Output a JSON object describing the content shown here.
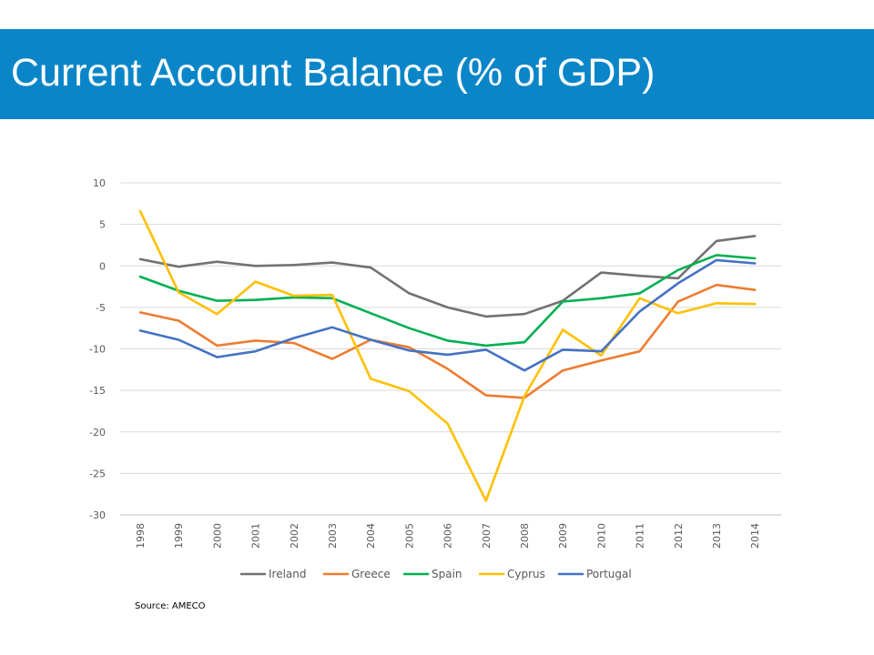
{
  "slide": {
    "title": "Current Account Balance (% of GDP)",
    "source": "Source: AMECO"
  },
  "colors": {
    "banner": "#0a86c8",
    "gridline": "#d9d9d9",
    "axis": "#bfbfbf"
  },
  "chart_data": {
    "type": "line",
    "title": "",
    "xlabel": "",
    "ylabel": "",
    "ylim": [
      -30,
      10
    ],
    "yticks": [
      10,
      5,
      0,
      -5,
      -10,
      -15,
      -20,
      -25,
      -30
    ],
    "grid": true,
    "legend_position": "bottom",
    "x": [
      "1998",
      "1999",
      "2000",
      "2001",
      "2002",
      "2003",
      "2004",
      "2005",
      "2006",
      "2007",
      "2008",
      "2009",
      "2010",
      "2011",
      "2012",
      "2013",
      "2014"
    ],
    "series": [
      {
        "name": "Ireland",
        "color": "#767171",
        "values": [
          0.8,
          -0.1,
          0.5,
          0.0,
          0.1,
          0.4,
          -0.2,
          -3.3,
          -5.0,
          -6.1,
          -5.8,
          -4.2,
          -0.8,
          -1.2,
          -1.5,
          3.0,
          3.6
        ]
      },
      {
        "name": "Greece",
        "color": "#ed7d31",
        "values": [
          -5.6,
          -6.6,
          -9.6,
          -9.0,
          -9.3,
          -11.2,
          -8.9,
          -9.8,
          -12.4,
          -15.6,
          -15.9,
          -12.6,
          -11.4,
          -10.3,
          -4.3,
          -2.3,
          -2.9
        ]
      },
      {
        "name": "Spain",
        "color": "#00b050",
        "values": [
          -1.3,
          -3.0,
          -4.2,
          -4.1,
          -3.8,
          -3.9,
          -5.7,
          -7.5,
          -9.0,
          -9.6,
          -9.2,
          -4.3,
          -3.9,
          -3.3,
          -0.5,
          1.3,
          0.9
        ]
      },
      {
        "name": "Cyprus",
        "color": "#ffc000",
        "values": [
          6.6,
          -3.2,
          -5.8,
          -1.9,
          -3.6,
          -3.5,
          -13.6,
          -15.1,
          -19.0,
          -28.3,
          -15.7,
          -7.7,
          -10.8,
          -3.9,
          -5.7,
          -4.5,
          -4.6
        ]
      },
      {
        "name": "Portugal",
        "color": "#4472c4",
        "values": [
          -7.8,
          -8.9,
          -11.0,
          -10.3,
          -8.7,
          -7.4,
          -8.9,
          -10.2,
          -10.7,
          -10.1,
          -12.6,
          -10.1,
          -10.3,
          -5.5,
          -2.1,
          0.7,
          0.3
        ]
      }
    ]
  }
}
